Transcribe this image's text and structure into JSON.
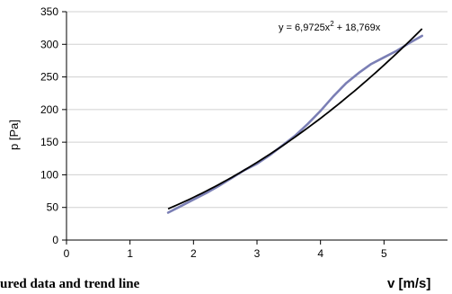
{
  "chart_data": {
    "type": "line",
    "title": "",
    "caption": "ured data and trend line",
    "xlabel": "v [m/s]",
    "ylabel": "p [Pa]",
    "xlim": [
      0,
      6
    ],
    "ylim": [
      0,
      350
    ],
    "x_ticks": [
      0,
      1,
      2,
      3,
      4,
      5
    ],
    "y_ticks": [
      0,
      50,
      100,
      150,
      200,
      250,
      300,
      350
    ],
    "grid": "horizontal",
    "trendline": {
      "equation_text": "y = 6,9725x",
      "equation_exponent": "2",
      "equation_tail": "+ 18,769x",
      "a": 6.9725,
      "b": 18.769,
      "x_range": [
        1.6,
        5.6
      ],
      "color": "#000000"
    },
    "series": [
      {
        "name": "",
        "color": "#7b7fb5",
        "points": [
          [
            1.6,
            42
          ],
          [
            1.8,
            52
          ],
          [
            2.0,
            62
          ],
          [
            2.2,
            72
          ],
          [
            2.4,
            83
          ],
          [
            2.6,
            95
          ],
          [
            2.8,
            107
          ],
          [
            3.0,
            117
          ],
          [
            3.2,
            130
          ],
          [
            3.4,
            145
          ],
          [
            3.6,
            160
          ],
          [
            3.8,
            178
          ],
          [
            4.0,
            198
          ],
          [
            4.2,
            220
          ],
          [
            4.4,
            240
          ],
          [
            4.6,
            256
          ],
          [
            4.8,
            270
          ],
          [
            5.0,
            280
          ],
          [
            5.2,
            290
          ],
          [
            5.4,
            302
          ],
          [
            5.6,
            313
          ]
        ]
      }
    ]
  }
}
